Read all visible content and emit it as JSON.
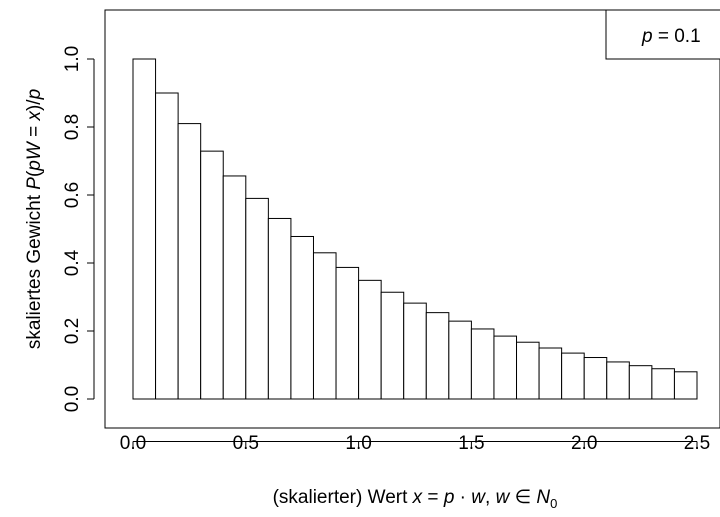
{
  "chart_data": {
    "type": "bar",
    "xlabel_parts": [
      "(skalierter) Wert ",
      "x",
      " = ",
      "p",
      " · ",
      "w",
      ", ",
      "w",
      " ∈ ",
      "N",
      "0"
    ],
    "ylabel_parts": [
      "skaliertes Gewicht ",
      "P",
      "(",
      "pW",
      " = ",
      "x",
      ")/",
      "p"
    ],
    "legend": {
      "parts": [
        "p",
        " = 0.1"
      ],
      "position": "top-right"
    },
    "xlim": [
      -0.125,
      2.5
    ],
    "ylim": [
      0,
      1.0
    ],
    "x_ticks": [
      0.0,
      0.5,
      1.0,
      1.5,
      2.0,
      2.5
    ],
    "x_tick_labels": [
      "0.0",
      "0.5",
      "1.0",
      "1.5",
      "2.0",
      "2.5"
    ],
    "y_ticks": [
      0.0,
      0.2,
      0.4,
      0.6,
      0.8,
      1.0
    ],
    "y_tick_labels": [
      "0.0",
      "0.2",
      "0.4",
      "0.6",
      "0.8",
      "1.0"
    ],
    "bin_width": 0.1,
    "x": [
      0.0,
      0.1,
      0.2,
      0.3,
      0.4,
      0.5,
      0.6,
      0.7,
      0.8,
      0.9,
      1.0,
      1.1,
      1.2,
      1.3,
      1.4,
      1.5,
      1.6,
      1.7,
      1.8,
      1.9,
      2.0,
      2.1,
      2.2,
      2.3,
      2.4
    ],
    "values": [
      1.0,
      0.9,
      0.81,
      0.729,
      0.656,
      0.59,
      0.531,
      0.478,
      0.43,
      0.387,
      0.349,
      0.314,
      0.282,
      0.254,
      0.229,
      0.206,
      0.185,
      0.167,
      0.15,
      0.135,
      0.122,
      0.109,
      0.098,
      0.089,
      0.08
    ],
    "grid": false
  }
}
